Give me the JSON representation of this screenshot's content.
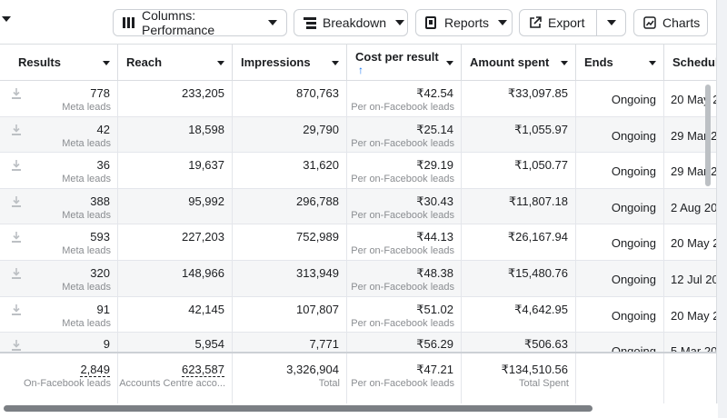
{
  "toolbar": {
    "columns_label": "Columns: Performance",
    "breakdown_label": "Breakdown",
    "reports_label": "Reports",
    "export_label": "Export",
    "charts_label": "Charts"
  },
  "table": {
    "headers": {
      "results": "Results",
      "reach": "Reach",
      "impressions": "Impressions",
      "cost_per_result": "Cost per result",
      "amount_spent": "Amount spent",
      "ends": "Ends",
      "schedule": "Schedul"
    },
    "rows": [
      {
        "results": "778",
        "results_sub": "Meta leads",
        "reach": "233,205",
        "impressions": "870,763",
        "cpr": "₹42.54",
        "cpr_sub": "Per on-Facebook leads",
        "spent": "₹33,097.85",
        "ends": "Ongoing",
        "schedule": "20 May 2"
      },
      {
        "results": "42",
        "results_sub": "Meta leads",
        "reach": "18,598",
        "impressions": "29,790",
        "cpr": "₹25.14",
        "cpr_sub": "Per on-Facebook leads",
        "spent": "₹1,055.97",
        "ends": "Ongoing",
        "schedule": "29 Mar 2"
      },
      {
        "results": "36",
        "results_sub": "Meta leads",
        "reach": "19,637",
        "impressions": "31,620",
        "cpr": "₹29.19",
        "cpr_sub": "Per on-Facebook leads",
        "spent": "₹1,050.77",
        "ends": "Ongoing",
        "schedule": "29 Mar 2"
      },
      {
        "results": "388",
        "results_sub": "Meta leads",
        "reach": "95,992",
        "impressions": "296,788",
        "cpr": "₹30.43",
        "cpr_sub": "Per on-Facebook leads",
        "spent": "₹11,807.18",
        "ends": "Ongoing",
        "schedule": "2 Aug 20"
      },
      {
        "results": "593",
        "results_sub": "Meta leads",
        "reach": "227,203",
        "impressions": "752,989",
        "cpr": "₹44.13",
        "cpr_sub": "Per on-Facebook leads",
        "spent": "₹26,167.94",
        "ends": "Ongoing",
        "schedule": "20 May 2"
      },
      {
        "results": "320",
        "results_sub": "Meta leads",
        "reach": "148,966",
        "impressions": "313,949",
        "cpr": "₹48.38",
        "cpr_sub": "Per on-Facebook leads",
        "spent": "₹15,480.76",
        "ends": "Ongoing",
        "schedule": "12 Jul 20"
      },
      {
        "results": "91",
        "results_sub": "Meta leads",
        "reach": "42,145",
        "impressions": "107,807",
        "cpr": "₹51.02",
        "cpr_sub": "Per on-Facebook leads",
        "spent": "₹4,642.95",
        "ends": "Ongoing",
        "schedule": "20 May 2"
      },
      {
        "results": "9",
        "results_sub": "",
        "reach": "5,954",
        "impressions": "7,771",
        "cpr": "₹56.29",
        "cpr_sub": "",
        "spent": "₹506.63",
        "ends": "Ongoing",
        "schedule": "5 Mar 20"
      }
    ],
    "totals": {
      "results": "2,849",
      "results_sub": "On-Facebook leads",
      "reach": "623,587",
      "reach_sub": "Accounts Centre acco...",
      "impressions": "3,326,904",
      "impressions_sub": "Total",
      "cpr": "₹47.21",
      "cpr_sub": "Per on-Facebook leads",
      "spent": "₹134,510.56",
      "spent_sub": "Total Spent"
    }
  },
  "colors": {
    "accent": "#1877f2",
    "border": "#dadde1",
    "alt_row": "#f5f6f7",
    "muted_text": "#8a8d91"
  },
  "icons": {
    "columns": "columns-icon",
    "breakdown": "breakdown-icon",
    "reports": "reports-icon",
    "export": "export-icon",
    "charts": "charts-icon",
    "row": "download-icon",
    "sort": "sort-ascending-arrow-icon"
  }
}
